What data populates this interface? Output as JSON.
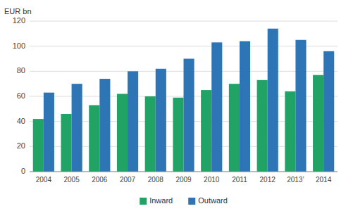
{
  "chart_data": {
    "type": "bar",
    "ylabel": "EUR bn",
    "categories": [
      "2004",
      "2005",
      "2006",
      "2007",
      "2008",
      "2009",
      "2010",
      "2011",
      "2012",
      "2013’",
      "2014"
    ],
    "series": [
      {
        "name": "Inward",
        "color": "#22a366",
        "values": [
          42,
          46,
          53,
          62,
          60,
          59,
          65,
          70,
          73,
          64,
          77
        ]
      },
      {
        "name": "Outward",
        "color": "#2e75b6",
        "values": [
          63,
          70,
          74,
          80,
          82,
          90,
          103,
          104,
          114,
          105,
          96
        ]
      }
    ],
    "ylim": [
      0,
      120
    ],
    "yticks": [
      0,
      20,
      40,
      60,
      80,
      100,
      120
    ],
    "grid": true,
    "legend": "bottom"
  }
}
